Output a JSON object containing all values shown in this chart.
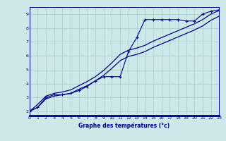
{
  "background_color": "#cce8e8",
  "plot_bg": "#d4ecec",
  "grid_color": "#aacccc",
  "line_color": "#000080",
  "xlabel": "Graphe des températures (°c)",
  "xlim": [
    0,
    23
  ],
  "ylim": [
    1.7,
    9.5
  ],
  "yticks": [
    2,
    3,
    4,
    5,
    6,
    7,
    8,
    9
  ],
  "xticks": [
    0,
    1,
    2,
    3,
    4,
    5,
    6,
    7,
    8,
    9,
    10,
    11,
    12,
    13,
    14,
    15,
    16,
    17,
    18,
    19,
    20,
    21,
    22,
    23
  ],
  "s1_x": [
    0,
    1,
    2,
    3,
    4,
    5,
    6,
    7,
    8,
    9,
    10,
    11,
    12,
    13,
    14,
    15,
    16,
    17,
    18,
    19,
    20,
    21,
    22,
    23
  ],
  "s1_y": [
    2.0,
    2.3,
    3.0,
    3.2,
    3.2,
    3.3,
    3.5,
    3.8,
    4.2,
    4.5,
    4.5,
    4.5,
    6.3,
    7.3,
    8.6,
    8.6,
    8.6,
    8.6,
    8.6,
    8.5,
    8.5,
    9.0,
    9.2,
    9.3
  ],
  "s2_x": [
    0,
    1,
    2,
    3,
    4,
    5,
    6,
    7,
    8,
    9,
    10,
    11,
    12,
    13,
    14,
    15,
    16,
    17,
    18,
    19,
    20,
    21,
    22,
    23
  ],
  "s2_y": [
    2.0,
    2.5,
    3.1,
    3.3,
    3.4,
    3.55,
    3.85,
    4.15,
    4.5,
    4.95,
    5.5,
    6.1,
    6.4,
    6.55,
    6.75,
    7.05,
    7.3,
    7.55,
    7.8,
    8.05,
    8.3,
    8.6,
    9.0,
    9.25
  ],
  "s3_x": [
    0,
    1,
    2,
    3,
    4,
    5,
    6,
    7,
    8,
    9,
    10,
    11,
    12,
    13,
    14,
    15,
    16,
    17,
    18,
    19,
    20,
    21,
    22,
    23
  ],
  "s3_y": [
    2.0,
    2.3,
    2.9,
    3.1,
    3.2,
    3.3,
    3.6,
    3.85,
    4.2,
    4.6,
    5.1,
    5.65,
    5.95,
    6.1,
    6.3,
    6.6,
    6.85,
    7.1,
    7.35,
    7.6,
    7.85,
    8.15,
    8.55,
    8.85
  ],
  "title_bar_color": "#000080"
}
